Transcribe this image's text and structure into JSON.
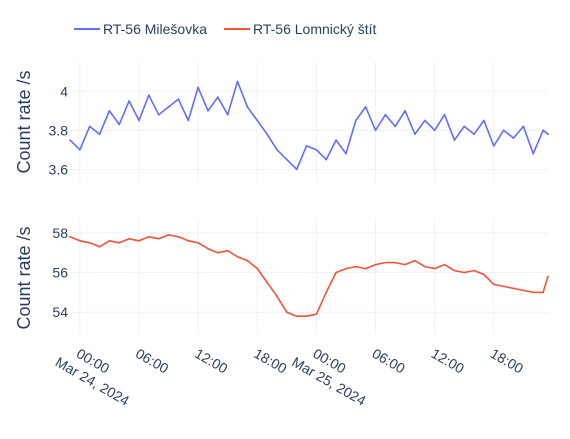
{
  "chart_data": {
    "type": "line",
    "legend": {
      "placement": "top-left",
      "entries": [
        {
          "name": "RT-56 Milešovka",
          "color": "#636efa"
        },
        {
          "name": "RT-56 Lomnický štít",
          "color": "#ef553b"
        }
      ]
    },
    "x_axis": {
      "range": [
        "2024-03-23T23:00",
        "2024-03-25T23:30"
      ],
      "ticks": [
        {
          "label": "00:00",
          "sublabel": "Mar 24, 2024",
          "hour": 0
        },
        {
          "label": "06:00",
          "sublabel": "",
          "hour": 6
        },
        {
          "label": "12:00",
          "sublabel": "",
          "hour": 12
        },
        {
          "label": "18:00",
          "sublabel": "",
          "hour": 18
        },
        {
          "label": "00:00",
          "sublabel": "Mar 25, 2024",
          "hour": 24
        },
        {
          "label": "06:00",
          "sublabel": "",
          "hour": 30
        },
        {
          "label": "12:00",
          "sublabel": "",
          "hour": 36
        },
        {
          "label": "18:00",
          "sublabel": "",
          "hour": 42
        }
      ]
    },
    "panels": [
      {
        "series": "RT-56 Milešovka",
        "color": "#636efa",
        "ylabel": "Count rate /s",
        "ylim": [
          3.53,
          4.15
        ],
        "yticks": [
          {
            "label": "3.6",
            "value": 3.6
          },
          {
            "label": "3.8",
            "value": 3.8
          },
          {
            "label": "4",
            "value": 4.0
          }
        ],
        "x": [
          "2024-03-23T23:00",
          "2024-03-24T00:00",
          "2024-03-24T01:00",
          "2024-03-24T02:00",
          "2024-03-24T03:00",
          "2024-03-24T04:00",
          "2024-03-24T05:00",
          "2024-03-24T06:00",
          "2024-03-24T07:00",
          "2024-03-24T08:00",
          "2024-03-24T09:00",
          "2024-03-24T10:00",
          "2024-03-24T11:00",
          "2024-03-24T12:00",
          "2024-03-24T13:00",
          "2024-03-24T14:00",
          "2024-03-24T15:00",
          "2024-03-24T16:00",
          "2024-03-24T17:00",
          "2024-03-24T18:00",
          "2024-03-24T19:00",
          "2024-03-24T20:00",
          "2024-03-24T21:00",
          "2024-03-24T22:00",
          "2024-03-24T23:00",
          "2024-03-25T00:00",
          "2024-03-25T01:00",
          "2024-03-25T02:00",
          "2024-03-25T03:00",
          "2024-03-25T04:00",
          "2024-03-25T05:00",
          "2024-03-25T06:00",
          "2024-03-25T07:00",
          "2024-03-25T08:00",
          "2024-03-25T09:00",
          "2024-03-25T10:00",
          "2024-03-25T11:00",
          "2024-03-25T12:00",
          "2024-03-25T13:00",
          "2024-03-25T14:00",
          "2024-03-25T15:00",
          "2024-03-25T16:00",
          "2024-03-25T17:00",
          "2024-03-25T18:00",
          "2024-03-25T19:00",
          "2024-03-25T20:00",
          "2024-03-25T21:00",
          "2024-03-25T22:00",
          "2024-03-25T23:00",
          "2024-03-25T23:30"
        ],
        "values": [
          3.75,
          3.7,
          3.82,
          3.78,
          3.9,
          3.83,
          3.95,
          3.85,
          3.98,
          3.88,
          3.92,
          3.96,
          3.85,
          4.02,
          3.9,
          3.97,
          3.88,
          4.05,
          3.92,
          3.85,
          3.78,
          3.7,
          3.65,
          3.6,
          3.72,
          3.7,
          3.65,
          3.75,
          3.68,
          3.85,
          3.92,
          3.8,
          3.88,
          3.82,
          3.9,
          3.78,
          3.85,
          3.8,
          3.88,
          3.75,
          3.82,
          3.78,
          3.85,
          3.72,
          3.8,
          3.76,
          3.82,
          3.68,
          3.8,
          3.78
        ]
      },
      {
        "series": "RT-56 Lomnický štít",
        "color": "#ef553b",
        "ylabel": "Count rate  /s",
        "ylim": [
          52.9,
          58.7
        ],
        "yticks": [
          {
            "label": "54",
            "value": 54
          },
          {
            "label": "56",
            "value": 56
          },
          {
            "label": "58",
            "value": 58
          }
        ],
        "x": [
          "2024-03-23T23:00",
          "2024-03-24T00:00",
          "2024-03-24T01:00",
          "2024-03-24T02:00",
          "2024-03-24T03:00",
          "2024-03-24T04:00",
          "2024-03-24T05:00",
          "2024-03-24T06:00",
          "2024-03-24T07:00",
          "2024-03-24T08:00",
          "2024-03-24T09:00",
          "2024-03-24T10:00",
          "2024-03-24T11:00",
          "2024-03-24T12:00",
          "2024-03-24T13:00",
          "2024-03-24T14:00",
          "2024-03-24T15:00",
          "2024-03-24T16:00",
          "2024-03-24T17:00",
          "2024-03-24T18:00",
          "2024-03-24T19:00",
          "2024-03-24T20:00",
          "2024-03-24T21:00",
          "2024-03-24T22:00",
          "2024-03-24T23:00",
          "2024-03-25T00:00",
          "2024-03-25T01:00",
          "2024-03-25T02:00",
          "2024-03-25T03:00",
          "2024-03-25T04:00",
          "2024-03-25T05:00",
          "2024-03-25T06:00",
          "2024-03-25T07:00",
          "2024-03-25T08:00",
          "2024-03-25T09:00",
          "2024-03-25T10:00",
          "2024-03-25T11:00",
          "2024-03-25T12:00",
          "2024-03-25T13:00",
          "2024-03-25T14:00",
          "2024-03-25T15:00",
          "2024-03-25T16:00",
          "2024-03-25T17:00",
          "2024-03-25T18:00",
          "2024-03-25T19:00",
          "2024-03-25T20:00",
          "2024-03-25T21:00",
          "2024-03-25T22:00",
          "2024-03-25T23:00",
          "2024-03-25T23:30"
        ],
        "values": [
          57.8,
          57.6,
          57.5,
          57.3,
          57.6,
          57.5,
          57.7,
          57.6,
          57.8,
          57.7,
          57.9,
          57.8,
          57.6,
          57.5,
          57.2,
          57.0,
          57.1,
          56.8,
          56.6,
          56.2,
          55.5,
          54.8,
          54.0,
          53.8,
          53.8,
          53.9,
          55.0,
          56.0,
          56.2,
          56.3,
          56.2,
          56.4,
          56.5,
          56.5,
          56.4,
          56.6,
          56.3,
          56.2,
          56.4,
          56.1,
          56.0,
          56.1,
          55.9,
          55.4,
          55.3,
          55.2,
          55.1,
          55.0,
          55.0,
          55.8
        ]
      }
    ]
  }
}
